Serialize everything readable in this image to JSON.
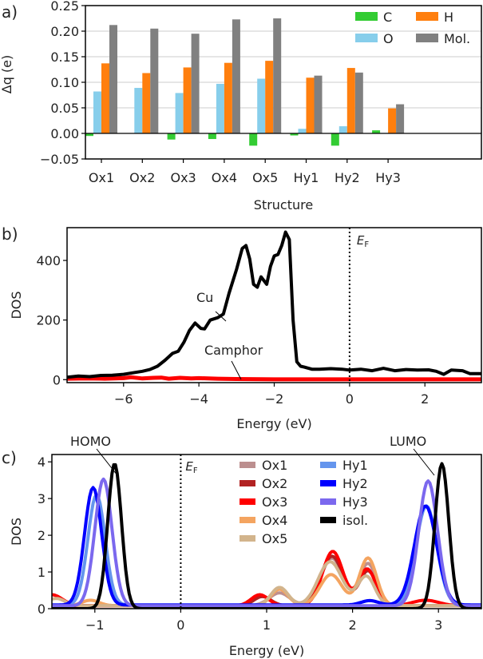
{
  "chart_data": [
    {
      "panel": "a)",
      "type": "bar",
      "title": "",
      "xlabel": "Structure",
      "ylabel": "Δq (e)",
      "ylim": [
        -0.05,
        0.25
      ],
      "yticks": [
        "−0.05",
        "0.00",
        "0.05",
        "0.10",
        "0.15",
        "0.20",
        "0.25"
      ],
      "ytick_values": [
        -0.05,
        0,
        0.05,
        0.1,
        0.15,
        0.2,
        0.25
      ],
      "grid": true,
      "legend_position": "top-right",
      "categories": [
        "Ox1",
        "Ox2",
        "Ox3",
        "Ox4",
        "Ox5",
        "Hy1",
        "Hy2",
        "Hy3"
      ],
      "series": [
        {
          "name": "C",
          "color": "#33cc33",
          "values": [
            -0.005,
            0.0,
            -0.012,
            -0.011,
            -0.024,
            -0.004,
            -0.024,
            0.006
          ]
        },
        {
          "name": "O",
          "color": "#87ceeb",
          "values": [
            0.082,
            0.089,
            0.079,
            0.097,
            0.107,
            0.009,
            0.014,
            0.001
          ]
        },
        {
          "name": "H",
          "color": "#ff7f0e",
          "values": [
            0.137,
            0.118,
            0.129,
            0.138,
            0.142,
            0.109,
            0.128,
            0.049
          ]
        },
        {
          "name": "Mol.",
          "color": "#808080",
          "values": [
            0.212,
            0.205,
            0.195,
            0.223,
            0.225,
            0.113,
            0.119,
            0.057
          ]
        }
      ]
    },
    {
      "panel": "b)",
      "type": "line",
      "xlabel": "Energy (eV)",
      "ylabel": "DOS",
      "xlim": [
        -7.5,
        3.5
      ],
      "ylim": [
        -10,
        510
      ],
      "xticks": [
        "−6",
        "−4",
        "−2",
        "0",
        "2"
      ],
      "xtick_values": [
        -6,
        -4,
        -2,
        0,
        2
      ],
      "yticks": [
        "0",
        "200",
        "400"
      ],
      "ytick_values": [
        0,
        200,
        400
      ],
      "fermi_label": "E",
      "fermi_sub": "F",
      "annotations": [
        {
          "text": "Cu"
        },
        {
          "text": "Camphor"
        }
      ],
      "series": [
        {
          "name": "Cu",
          "color": "#000000",
          "x": [
            -7.5,
            -7.2,
            -6.9,
            -6.6,
            -6.3,
            -6.0,
            -5.7,
            -5.5,
            -5.3,
            -5.1,
            -4.9,
            -4.7,
            -4.55,
            -4.4,
            -4.25,
            -4.1,
            -3.95,
            -3.85,
            -3.7,
            -3.5,
            -3.35,
            -3.2,
            -3.0,
            -2.85,
            -2.75,
            -2.65,
            -2.55,
            -2.45,
            -2.35,
            -2.2,
            -2.1,
            -2.0,
            -1.9,
            -1.8,
            -1.7,
            -1.6,
            -1.5,
            -1.4,
            -1.3,
            -1.2,
            -1.0,
            -0.8,
            -0.5,
            -0.2,
            0,
            0.3,
            0.6,
            0.9,
            1.2,
            1.5,
            1.8,
            2.1,
            2.3,
            2.5,
            2.7,
            3.0,
            3.2,
            3.5
          ],
          "y": [
            8,
            12,
            10,
            14,
            15,
            18,
            24,
            28,
            34,
            45,
            65,
            88,
            95,
            125,
            165,
            190,
            172,
            170,
            200,
            208,
            220,
            290,
            370,
            440,
            450,
            405,
            320,
            310,
            345,
            320,
            380,
            415,
            420,
            450,
            495,
            470,
            200,
            60,
            45,
            42,
            35,
            35,
            37,
            35,
            32,
            35,
            30,
            38,
            30,
            34,
            32,
            33,
            28,
            18,
            32,
            30,
            20,
            20
          ]
        },
        {
          "name": "Camphor",
          "color": "#ff0000",
          "x": [
            -7.5,
            -7,
            -6.5,
            -6,
            -5.8,
            -5.5,
            -5.2,
            -5.0,
            -4.8,
            -4.5,
            -4.2,
            -4.0,
            -3.5,
            -3.0,
            -2.0,
            -1.0,
            0,
            1,
            2,
            3,
            3.5
          ],
          "y": [
            3,
            4,
            3,
            5,
            8,
            4,
            6,
            7,
            3,
            6,
            4,
            5,
            3,
            2,
            1,
            1,
            1,
            1,
            1,
            1,
            1
          ]
        }
      ]
    },
    {
      "panel": "c)",
      "type": "line",
      "xlabel": "Energy (eV)",
      "ylabel": "DOS",
      "xlim": [
        -1.5,
        3.5
      ],
      "ylim": [
        0,
        4.2
      ],
      "xticks": [
        "−1",
        "0",
        "1",
        "2",
        "3"
      ],
      "xtick_values": [
        -1,
        0,
        1,
        2,
        3
      ],
      "yticks": [
        "0",
        "1",
        "2",
        "3",
        "4"
      ],
      "ytick_values": [
        0,
        1,
        2,
        3,
        4
      ],
      "fermi_label": "E",
      "fermi_sub": "F",
      "annotations": [
        {
          "text": "HOMO"
        },
        {
          "text": "LUMO"
        }
      ],
      "legend_position": "top-center",
      "series": [
        {
          "name": "Ox1",
          "color": "#bc8f8f",
          "peaks": [
            [
              1.15,
              0.35,
              0.12
            ],
            [
              1.76,
              1.3,
              0.13
            ],
            [
              2.18,
              1.15,
              0.1
            ]
          ],
          "base": 0.08
        },
        {
          "name": "Ox2",
          "color": "#b22222",
          "peaks": [
            [
              0.95,
              0.25,
              0.1
            ],
            [
              1.76,
              1.35,
              0.13
            ],
            [
              2.18,
              0.95,
              0.1
            ]
          ],
          "base": 0.08
        },
        {
          "name": "Ox3",
          "color": "#ff0000",
          "peaks": [
            [
              0.92,
              0.3,
              0.1
            ],
            [
              1.77,
              1.48,
              0.12
            ],
            [
              2.17,
              1.0,
              0.1
            ],
            [
              -1.5,
              0.3,
              0.12
            ],
            [
              2.85,
              0.15,
              0.15
            ]
          ],
          "base": 0.08
        },
        {
          "name": "Ox4",
          "color": "#f4a460",
          "peaks": [
            [
              1.15,
              0.45,
              0.1
            ],
            [
              1.75,
              0.85,
              0.13
            ],
            [
              2.18,
              1.3,
              0.1
            ],
            [
              -1.05,
              0.15,
              0.1
            ]
          ],
          "base": 0.08
        },
        {
          "name": "Ox5",
          "color": "#d2b48c",
          "peaks": [
            [
              1.15,
              0.5,
              0.1
            ],
            [
              1.74,
              1.2,
              0.14
            ],
            [
              2.16,
              0.8,
              0.1
            ],
            [
              -1.45,
              0.2,
              0.1
            ]
          ],
          "base": 0.08
        },
        {
          "name": "Hy1",
          "color": "#6495ed",
          "peaks": [
            [
              -0.98,
              3.0,
              0.1
            ],
            [
              2.86,
              2.7,
              0.12
            ],
            [
              2.2,
              0.12,
              0.1
            ]
          ],
          "base": 0.1
        },
        {
          "name": "Hy2",
          "color": "#0000ff",
          "peaks": [
            [
              -1.02,
              3.2,
              0.1
            ],
            [
              2.85,
              2.7,
              0.13
            ],
            [
              2.2,
              0.12,
              0.1
            ]
          ],
          "base": 0.1
        },
        {
          "name": "Hy3",
          "color": "#7b68ee",
          "peaks": [
            [
              -0.9,
              3.45,
              0.1
            ],
            [
              2.88,
              3.4,
              0.11
            ]
          ],
          "base": 0.08
        },
        {
          "name": "isol.",
          "color": "#000000",
          "peaks": [
            [
              -0.77,
              3.95,
              0.08
            ],
            [
              3.04,
              3.95,
              0.08
            ]
          ],
          "base": 0.0
        }
      ]
    }
  ]
}
